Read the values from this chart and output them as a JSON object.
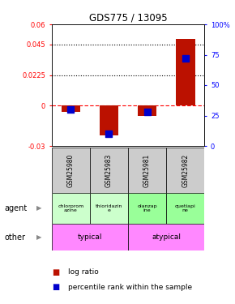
{
  "title": "GDS775 / 13095",
  "samples": [
    "GSM25980",
    "GSM25983",
    "GSM25981",
    "GSM25982"
  ],
  "log_ratios": [
    -0.005,
    -0.022,
    -0.008,
    0.049
  ],
  "percentile_ranks": [
    0.3,
    0.1,
    0.28,
    0.72
  ],
  "agents": [
    "chlorprom\nazine",
    "thioridazin\ne",
    "olanzap\nine",
    "quetiapi\nne"
  ],
  "agent_colors": [
    "#ccffcc",
    "#ccffcc",
    "#99ff99",
    "#99ff99"
  ],
  "other_groups": [
    [
      "typical",
      2
    ],
    [
      "atypical",
      2
    ]
  ],
  "other_color": "#ff88ff",
  "ylim_left": [
    -0.03,
    0.06
  ],
  "ylim_right": [
    0,
    1.0
  ],
  "yticks_left": [
    -0.03,
    0,
    0.0225,
    0.045,
    0.06
  ],
  "ytick_labels_left": [
    "-0.03",
    "0",
    "0.0225",
    "0.045",
    "0.06"
  ],
  "yticks_right": [
    0,
    0.25,
    0.5,
    0.75,
    1.0
  ],
  "ytick_labels_right": [
    "0",
    "25",
    "50",
    "75",
    "100%"
  ],
  "hlines": [
    0.0225,
    0.045
  ],
  "zero_line": 0.0,
  "bar_color": "#bb1100",
  "dot_color": "#0000cc",
  "bar_width": 0.5,
  "dot_size": 28,
  "background_color": "#ffffff",
  "sample_label_bg": "#cccccc"
}
